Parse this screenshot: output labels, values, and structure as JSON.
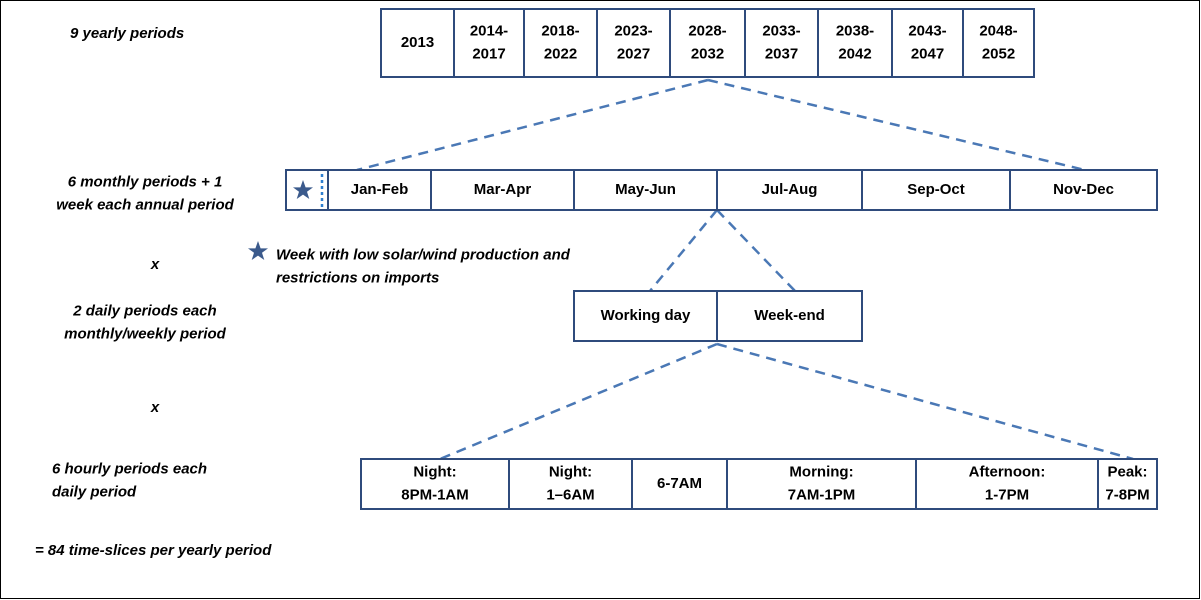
{
  "left_labels": {
    "yearly": [
      "9 yearly periods"
    ],
    "monthly": [
      "6 monthly periods + 1",
      "week each annual period"
    ],
    "times_1": [
      "x"
    ],
    "daily": [
      "2 daily periods each",
      "monthly/weekly period"
    ],
    "times_2": [
      "x"
    ],
    "hourly": [
      "6 hourly periods each",
      "daily period"
    ],
    "total": [
      "= 84 time-slices per yearly period"
    ]
  },
  "star_note": [
    "Week with low solar/wind production and",
    "restrictions on imports"
  ],
  "yearly_periods": [
    [
      "2013"
    ],
    [
      "2014-",
      "2017"
    ],
    [
      "2018-",
      "2022"
    ],
    [
      "2023-",
      "2027"
    ],
    [
      "2028-",
      "2032"
    ],
    [
      "2033-",
      "2037"
    ],
    [
      "2038-",
      "2042"
    ],
    [
      "2043-",
      "2047"
    ],
    [
      "2048-",
      "2052"
    ]
  ],
  "monthly_periods": [
    [
      "Jan-Feb"
    ],
    [
      "Mar-Apr"
    ],
    [
      "May-Jun"
    ],
    [
      "Jul-Aug"
    ],
    [
      "Sep-Oct"
    ],
    [
      "Nov-Dec"
    ]
  ],
  "daily_periods": [
    [
      "Working day"
    ],
    [
      "Week-end"
    ]
  ],
  "hourly_periods": [
    [
      "Night:",
      "8PM-1AM"
    ],
    [
      "Night:",
      "1–6AM"
    ],
    [
      "6-7AM"
    ],
    [
      "Morning:",
      "7AM-1PM"
    ],
    [
      "Afternoon:",
      "1-7PM"
    ],
    [
      "Peak:",
      "7-8PM"
    ]
  ]
}
